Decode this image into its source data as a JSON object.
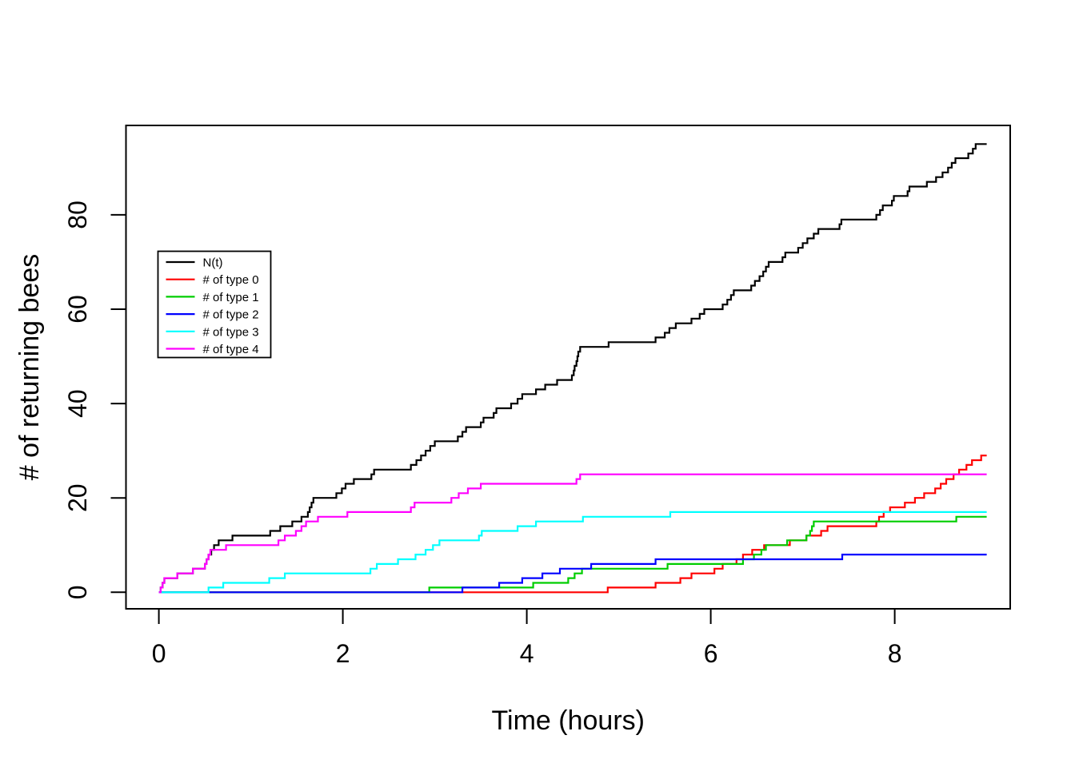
{
  "figure": {
    "background": "#ffffff",
    "title": ""
  },
  "chart_data": {
    "type": "line",
    "subtype": "step",
    "title": "",
    "xlabel": "Time (hours)",
    "ylabel": "# of returning bees",
    "xlim": [
      0,
      9
    ],
    "ylim": [
      0,
      95
    ],
    "x_ticks": [
      0,
      2,
      4,
      6,
      8
    ],
    "y_ticks": [
      0,
      20,
      40,
      60,
      80
    ],
    "grid": false,
    "legend_position": "upper-left-inside",
    "t_end": 9.0,
    "axis_color": "#000000",
    "series": [
      {
        "name": "N(t)",
        "color": "#000000",
        "points": [
          [
            0,
            0
          ],
          [
            0.02,
            1
          ],
          [
            0.04,
            2
          ],
          [
            0.06,
            3
          ],
          [
            0.2,
            4
          ],
          [
            0.37,
            5
          ],
          [
            0.5,
            6
          ],
          [
            0.52,
            7
          ],
          [
            0.54,
            8
          ],
          [
            0.57,
            9
          ],
          [
            0.6,
            10
          ],
          [
            0.65,
            11
          ],
          [
            0.8,
            12
          ],
          [
            1.21,
            13
          ],
          [
            1.32,
            14
          ],
          [
            1.45,
            15
          ],
          [
            1.55,
            16
          ],
          [
            1.62,
            17
          ],
          [
            1.64,
            18
          ],
          [
            1.66,
            19
          ],
          [
            1.68,
            20
          ],
          [
            1.93,
            21
          ],
          [
            1.99,
            22
          ],
          [
            2.03,
            23
          ],
          [
            2.12,
            24
          ],
          [
            2.31,
            25
          ],
          [
            2.34,
            26
          ],
          [
            2.74,
            27
          ],
          [
            2.8,
            28
          ],
          [
            2.85,
            29
          ],
          [
            2.9,
            30
          ],
          [
            2.95,
            31
          ],
          [
            3.0,
            32
          ],
          [
            3.25,
            33
          ],
          [
            3.3,
            34
          ],
          [
            3.34,
            35
          ],
          [
            3.5,
            36
          ],
          [
            3.53,
            37
          ],
          [
            3.64,
            38
          ],
          [
            3.67,
            39
          ],
          [
            3.83,
            40
          ],
          [
            3.9,
            41
          ],
          [
            3.95,
            42
          ],
          [
            4.1,
            43
          ],
          [
            4.2,
            44
          ],
          [
            4.33,
            45
          ],
          [
            4.49,
            46
          ],
          [
            4.51,
            47
          ],
          [
            4.52,
            48
          ],
          [
            4.54,
            49
          ],
          [
            4.55,
            50
          ],
          [
            4.56,
            51
          ],
          [
            4.58,
            52
          ],
          [
            4.89,
            53
          ],
          [
            5.4,
            54
          ],
          [
            5.5,
            55
          ],
          [
            5.55,
            56
          ],
          [
            5.62,
            57
          ],
          [
            5.79,
            58
          ],
          [
            5.88,
            59
          ],
          [
            5.93,
            60
          ],
          [
            6.13,
            61
          ],
          [
            6.18,
            62
          ],
          [
            6.22,
            63
          ],
          [
            6.25,
            64
          ],
          [
            6.44,
            65
          ],
          [
            6.48,
            66
          ],
          [
            6.53,
            67
          ],
          [
            6.57,
            68
          ],
          [
            6.6,
            69
          ],
          [
            6.63,
            70
          ],
          [
            6.78,
            71
          ],
          [
            6.81,
            72
          ],
          [
            6.95,
            73
          ],
          [
            7.0,
            74
          ],
          [
            7.05,
            75
          ],
          [
            7.12,
            76
          ],
          [
            7.17,
            77
          ],
          [
            7.4,
            78
          ],
          [
            7.42,
            79
          ],
          [
            7.8,
            80
          ],
          [
            7.84,
            81
          ],
          [
            7.87,
            82
          ],
          [
            7.97,
            83
          ],
          [
            7.99,
            84
          ],
          [
            8.14,
            85
          ],
          [
            8.16,
            86
          ],
          [
            8.35,
            87
          ],
          [
            8.45,
            88
          ],
          [
            8.52,
            89
          ],
          [
            8.58,
            90
          ],
          [
            8.62,
            91
          ],
          [
            8.66,
            92
          ],
          [
            8.8,
            93
          ],
          [
            8.85,
            94
          ],
          [
            8.88,
            95
          ]
        ]
      },
      {
        "name": "# of type 0",
        "color": "#FF0000",
        "points": [
          [
            0,
            0
          ],
          [
            4.88,
            1
          ],
          [
            5.4,
            2
          ],
          [
            5.67,
            3
          ],
          [
            5.79,
            4
          ],
          [
            6.04,
            5
          ],
          [
            6.13,
            6
          ],
          [
            6.28,
            7
          ],
          [
            6.35,
            8
          ],
          [
            6.45,
            9
          ],
          [
            6.58,
            10
          ],
          [
            6.86,
            11
          ],
          [
            7.04,
            12
          ],
          [
            7.2,
            13
          ],
          [
            7.27,
            14
          ],
          [
            7.8,
            15
          ],
          [
            7.83,
            16
          ],
          [
            7.88,
            17
          ],
          [
            7.95,
            18
          ],
          [
            8.11,
            19
          ],
          [
            8.22,
            20
          ],
          [
            8.32,
            21
          ],
          [
            8.44,
            22
          ],
          [
            8.5,
            23
          ],
          [
            8.56,
            24
          ],
          [
            8.64,
            25
          ],
          [
            8.7,
            26
          ],
          [
            8.78,
            27
          ],
          [
            8.84,
            28
          ],
          [
            8.94,
            29
          ]
        ]
      },
      {
        "name": "# of type 1",
        "color": "#00CD00",
        "points": [
          [
            0,
            0
          ],
          [
            2.94,
            1
          ],
          [
            4.07,
            2
          ],
          [
            4.45,
            3
          ],
          [
            4.52,
            4
          ],
          [
            4.6,
            5
          ],
          [
            5.53,
            6
          ],
          [
            6.35,
            7
          ],
          [
            6.47,
            8
          ],
          [
            6.55,
            9
          ],
          [
            6.6,
            10
          ],
          [
            6.83,
            11
          ],
          [
            7.04,
            12
          ],
          [
            7.08,
            13
          ],
          [
            7.1,
            14
          ],
          [
            7.12,
            15
          ],
          [
            8.67,
            16
          ]
        ]
      },
      {
        "name": "# of type 2",
        "color": "#0000FF",
        "points": [
          [
            0,
            0
          ],
          [
            3.3,
            1
          ],
          [
            3.7,
            2
          ],
          [
            3.95,
            3
          ],
          [
            4.17,
            4
          ],
          [
            4.36,
            5
          ],
          [
            4.7,
            6
          ],
          [
            5.4,
            7
          ],
          [
            7.43,
            8
          ]
        ]
      },
      {
        "name": "# of type 3",
        "color": "#00FFFF",
        "points": [
          [
            0,
            0
          ],
          [
            0.54,
            1
          ],
          [
            0.7,
            2
          ],
          [
            1.2,
            3
          ],
          [
            1.37,
            4
          ],
          [
            2.3,
            5
          ],
          [
            2.37,
            6
          ],
          [
            2.6,
            7
          ],
          [
            2.79,
            8
          ],
          [
            2.9,
            9
          ],
          [
            2.98,
            10
          ],
          [
            3.05,
            11
          ],
          [
            3.48,
            12
          ],
          [
            3.51,
            13
          ],
          [
            3.9,
            14
          ],
          [
            4.1,
            15
          ],
          [
            4.61,
            16
          ],
          [
            5.56,
            17
          ]
        ]
      },
      {
        "name": "# of type 4",
        "color": "#FF00FF",
        "points": [
          [
            0,
            0
          ],
          [
            0.02,
            1
          ],
          [
            0.04,
            2
          ],
          [
            0.06,
            3
          ],
          [
            0.2,
            4
          ],
          [
            0.37,
            5
          ],
          [
            0.5,
            6
          ],
          [
            0.52,
            7
          ],
          [
            0.54,
            8
          ],
          [
            0.56,
            9
          ],
          [
            0.73,
            10
          ],
          [
            1.3,
            11
          ],
          [
            1.37,
            12
          ],
          [
            1.49,
            13
          ],
          [
            1.55,
            14
          ],
          [
            1.6,
            15
          ],
          [
            1.73,
            16
          ],
          [
            2.05,
            17
          ],
          [
            2.74,
            18
          ],
          [
            2.78,
            19
          ],
          [
            3.18,
            20
          ],
          [
            3.26,
            21
          ],
          [
            3.36,
            22
          ],
          [
            3.5,
            23
          ],
          [
            4.54,
            24
          ],
          [
            4.58,
            25
          ]
        ]
      }
    ]
  }
}
